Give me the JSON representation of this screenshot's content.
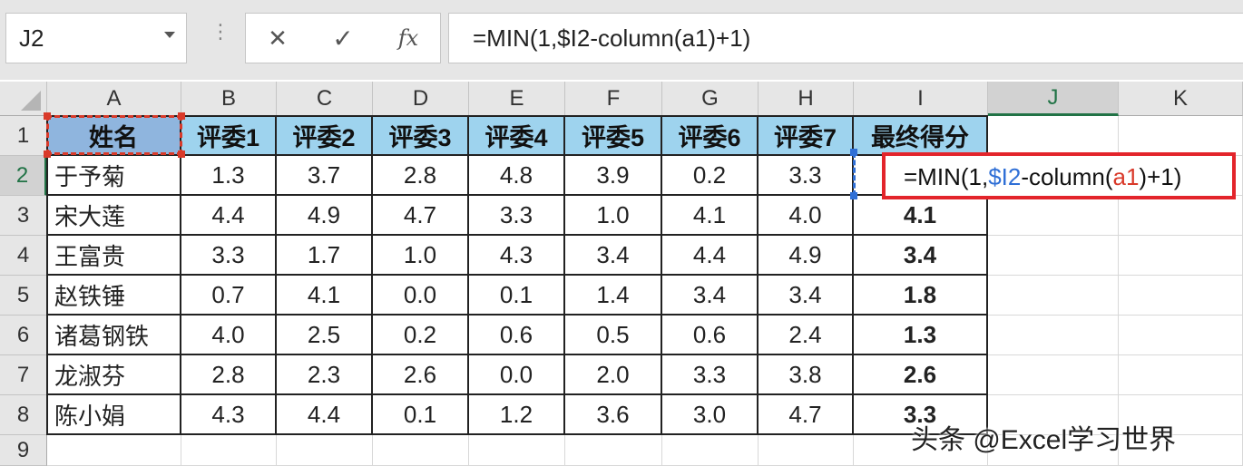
{
  "name_box": {
    "value": "J2"
  },
  "formula_bar": {
    "cancel_symbol": "✕",
    "enter_symbol": "✓",
    "fx_label": "fx",
    "formula": "=MIN(1,$I2-column(a1)+1)"
  },
  "columns": [
    "A",
    "B",
    "C",
    "D",
    "E",
    "F",
    "G",
    "H",
    "I",
    "J",
    "K"
  ],
  "rows": [
    "1",
    "2",
    "3",
    "4",
    "5",
    "6",
    "7",
    "8",
    "9"
  ],
  "table": {
    "headers": [
      "姓名",
      "评委1",
      "评委2",
      "评委3",
      "评委4",
      "评委5",
      "评委6",
      "评委7",
      "最终得分"
    ],
    "rows": [
      {
        "name": "于予菊",
        "scores": [
          "1.3",
          "3.7",
          "2.8",
          "4.8",
          "3.9",
          "0.2",
          "3.3"
        ],
        "final": ""
      },
      {
        "name": "宋大莲",
        "scores": [
          "4.4",
          "4.9",
          "4.7",
          "3.3",
          "1.0",
          "4.1",
          "4.0"
        ],
        "final": "4.1"
      },
      {
        "name": "王富贵",
        "scores": [
          "3.3",
          "1.7",
          "1.0",
          "4.3",
          "3.4",
          "4.4",
          "4.9"
        ],
        "final": "3.4"
      },
      {
        "name": "赵铁锤",
        "scores": [
          "0.7",
          "4.1",
          "0.0",
          "0.1",
          "1.4",
          "3.4",
          "3.4"
        ],
        "final": "1.8"
      },
      {
        "name": "诸葛钢铁",
        "scores": [
          "4.0",
          "2.5",
          "0.2",
          "0.6",
          "0.5",
          "0.6",
          "2.4"
        ],
        "final": "1.3"
      },
      {
        "name": "龙淑芬",
        "scores": [
          "2.8",
          "2.3",
          "2.6",
          "0.0",
          "2.0",
          "3.3",
          "3.8"
        ],
        "final": "2.6"
      },
      {
        "name": "陈小娟",
        "scores": [
          "4.3",
          "4.4",
          "0.1",
          "1.2",
          "3.6",
          "3.0",
          "4.7"
        ],
        "final": "3.3"
      }
    ]
  },
  "editing_cell": {
    "parts": [
      "=MIN(1,",
      "$I2",
      "-column(",
      "a1",
      ")+1)"
    ]
  },
  "watermark": "头条 @Excel学习世界",
  "colors": {
    "header_fill": "#9ed3ee",
    "name_header_fill": "#8fb5de",
    "highlight_border": "#e3242b",
    "ref_blue": "#2f6fd6",
    "ref_red": "#d93a2a",
    "excel_green": "#217346"
  }
}
